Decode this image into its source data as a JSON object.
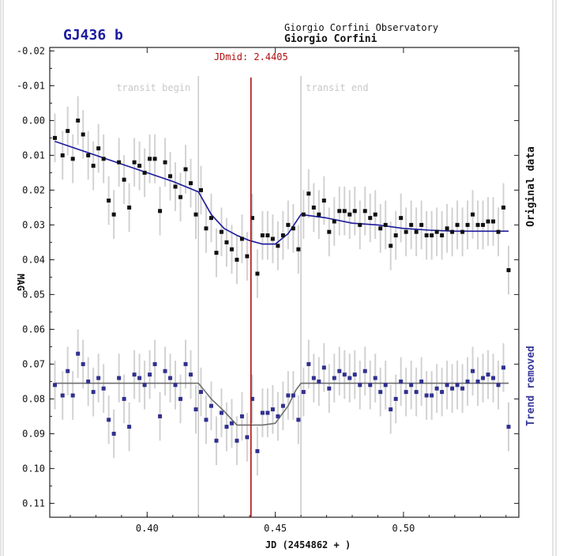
{
  "chart_data": {
    "type": "scatter",
    "title": "GJ436 b",
    "observatory": "Giorgio Corfini Observatory",
    "observer": "Giorgio Corfini",
    "xlabel": "JD (2454862 + )",
    "ylabel": "MAG",
    "xlim": [
      0.362,
      0.545
    ],
    "ylim": [
      0.114,
      -0.021
    ],
    "x_ticks": [
      0.4,
      0.45,
      0.5
    ],
    "x_tick_labels": [
      "0.40",
      "0.45",
      "0.50"
    ],
    "y_ticks": [
      -0.02,
      -0.01,
      0.0,
      0.01,
      0.02,
      0.03,
      0.04,
      0.05,
      0.06,
      0.07,
      0.08,
      0.09,
      0.1,
      0.11
    ],
    "y_tick_labels": [
      "-0.02",
      "-0.01",
      "0.00",
      "0.01",
      "0.02",
      "0.03",
      "0.04",
      "0.05",
      "0.06",
      "0.07",
      "0.08",
      "0.09",
      "0.10",
      "0.11"
    ],
    "grid": false,
    "transit_begin": {
      "x": 0.42,
      "label": "transit begin"
    },
    "transit_end": {
      "x": 0.46,
      "label": "transit end"
    },
    "jd_mid": {
      "x": 0.4405,
      "label": "JDmid: 2.4405"
    },
    "side_labels": {
      "top": "Original data",
      "bottom": "Trend removed"
    },
    "colors": {
      "original_points": "#111111",
      "original_fit": "#1a1a9a",
      "trend_points": "#303090",
      "trend_fit": "#6e6e6e",
      "midline": "#b01010",
      "transit_lines": "#c8c8c8",
      "title": "#1a1aa0",
      "trend_label": "#3a3a9a"
    },
    "series": [
      {
        "name": "Original data",
        "error": 0.007,
        "x": [
          0.364,
          0.367,
          0.369,
          0.371,
          0.373,
          0.375,
          0.377,
          0.379,
          0.381,
          0.383,
          0.385,
          0.387,
          0.389,
          0.391,
          0.393,
          0.395,
          0.397,
          0.399,
          0.401,
          0.403,
          0.405,
          0.407,
          0.409,
          0.411,
          0.413,
          0.415,
          0.417,
          0.419,
          0.421,
          0.423,
          0.425,
          0.427,
          0.429,
          0.431,
          0.433,
          0.435,
          0.437,
          0.439,
          0.441,
          0.443,
          0.445,
          0.447,
          0.449,
          0.451,
          0.453,
          0.455,
          0.457,
          0.459,
          0.461,
          0.463,
          0.465,
          0.467,
          0.469,
          0.471,
          0.473,
          0.475,
          0.477,
          0.479,
          0.481,
          0.483,
          0.485,
          0.487,
          0.489,
          0.491,
          0.493,
          0.495,
          0.497,
          0.499,
          0.501,
          0.503,
          0.505,
          0.507,
          0.509,
          0.511,
          0.513,
          0.515,
          0.517,
          0.519,
          0.521,
          0.523,
          0.525,
          0.527,
          0.529,
          0.531,
          0.533,
          0.535,
          0.537,
          0.539,
          0.541
        ],
        "y": [
          0.005,
          0.01,
          0.003,
          0.011,
          0.0,
          0.004,
          0.01,
          0.013,
          0.008,
          0.011,
          0.023,
          0.027,
          0.012,
          0.017,
          0.025,
          0.012,
          0.013,
          0.015,
          0.011,
          0.011,
          0.026,
          0.012,
          0.016,
          0.019,
          0.022,
          0.014,
          0.018,
          0.027,
          0.02,
          0.031,
          0.028,
          0.038,
          0.032,
          0.035,
          0.037,
          0.04,
          0.034,
          0.039,
          0.028,
          0.044,
          0.033,
          0.033,
          0.034,
          0.036,
          0.033,
          0.03,
          0.031,
          0.037,
          0.027,
          0.021,
          0.025,
          0.027,
          0.023,
          0.032,
          0.029,
          0.026,
          0.026,
          0.027,
          0.026,
          0.03,
          0.026,
          0.028,
          0.027,
          0.031,
          0.03,
          0.036,
          0.033,
          0.028,
          0.032,
          0.03,
          0.032,
          0.03,
          0.033,
          0.033,
          0.032,
          0.033,
          0.031,
          0.032,
          0.03,
          0.032,
          0.03,
          0.027,
          0.03,
          0.03,
          0.029,
          0.029,
          0.032,
          0.025,
          0.043
        ]
      },
      {
        "name": "Trend removed",
        "error": 0.007,
        "x": [
          0.364,
          0.367,
          0.369,
          0.371,
          0.373,
          0.375,
          0.377,
          0.379,
          0.381,
          0.383,
          0.385,
          0.387,
          0.389,
          0.391,
          0.393,
          0.395,
          0.397,
          0.399,
          0.401,
          0.403,
          0.405,
          0.407,
          0.409,
          0.411,
          0.413,
          0.415,
          0.417,
          0.419,
          0.421,
          0.423,
          0.425,
          0.427,
          0.429,
          0.431,
          0.433,
          0.435,
          0.437,
          0.439,
          0.441,
          0.443,
          0.445,
          0.447,
          0.449,
          0.451,
          0.453,
          0.455,
          0.457,
          0.459,
          0.461,
          0.463,
          0.465,
          0.467,
          0.469,
          0.471,
          0.473,
          0.475,
          0.477,
          0.479,
          0.481,
          0.483,
          0.485,
          0.487,
          0.489,
          0.491,
          0.493,
          0.495,
          0.497,
          0.499,
          0.501,
          0.503,
          0.505,
          0.507,
          0.509,
          0.511,
          0.513,
          0.515,
          0.517,
          0.519,
          0.521,
          0.523,
          0.525,
          0.527,
          0.529,
          0.531,
          0.533,
          0.535,
          0.537,
          0.539,
          0.541
        ],
        "y": [
          0.076,
          0.079,
          0.072,
          0.079,
          0.067,
          0.07,
          0.075,
          0.078,
          0.074,
          0.077,
          0.086,
          0.09,
          0.074,
          0.08,
          0.088,
          0.073,
          0.074,
          0.076,
          0.073,
          0.07,
          0.085,
          0.072,
          0.074,
          0.076,
          0.08,
          0.07,
          0.073,
          0.083,
          0.078,
          0.086,
          0.082,
          0.092,
          0.084,
          0.088,
          0.087,
          0.092,
          0.085,
          0.091,
          0.08,
          0.095,
          0.084,
          0.084,
          0.083,
          0.085,
          0.082,
          0.079,
          0.079,
          0.086,
          0.078,
          0.07,
          0.074,
          0.075,
          0.071,
          0.077,
          0.074,
          0.072,
          0.073,
          0.074,
          0.073,
          0.076,
          0.072,
          0.076,
          0.074,
          0.078,
          0.076,
          0.083,
          0.08,
          0.075,
          0.078,
          0.076,
          0.078,
          0.075,
          0.079,
          0.079,
          0.077,
          0.078,
          0.076,
          0.077,
          0.076,
          0.077,
          0.075,
          0.072,
          0.075,
          0.074,
          0.073,
          0.074,
          0.076,
          0.071,
          0.088
        ]
      }
    ],
    "fits": [
      {
        "name": "Original data fit",
        "x": [
          0.364,
          0.38,
          0.4,
          0.41,
          0.42,
          0.425,
          0.43,
          0.435,
          0.44,
          0.445,
          0.45,
          0.455,
          0.46,
          0.47,
          0.48,
          0.49,
          0.5,
          0.51,
          0.52,
          0.53,
          0.541
        ],
        "y": [
          0.006,
          0.01,
          0.015,
          0.0175,
          0.0205,
          0.027,
          0.031,
          0.033,
          0.0345,
          0.0355,
          0.0355,
          0.0325,
          0.027,
          0.028,
          0.0295,
          0.03,
          0.031,
          0.0315,
          0.0318,
          0.0318,
          0.0318
        ]
      },
      {
        "name": "Trend removed fit",
        "x": [
          0.364,
          0.418,
          0.42,
          0.425,
          0.43,
          0.435,
          0.44,
          0.445,
          0.45,
          0.455,
          0.458,
          0.46,
          0.541
        ],
        "y": [
          0.0755,
          0.0755,
          0.0755,
          0.08,
          0.0835,
          0.0875,
          0.0875,
          0.0875,
          0.087,
          0.082,
          0.0775,
          0.0755,
          0.0755
        ]
      }
    ]
  }
}
